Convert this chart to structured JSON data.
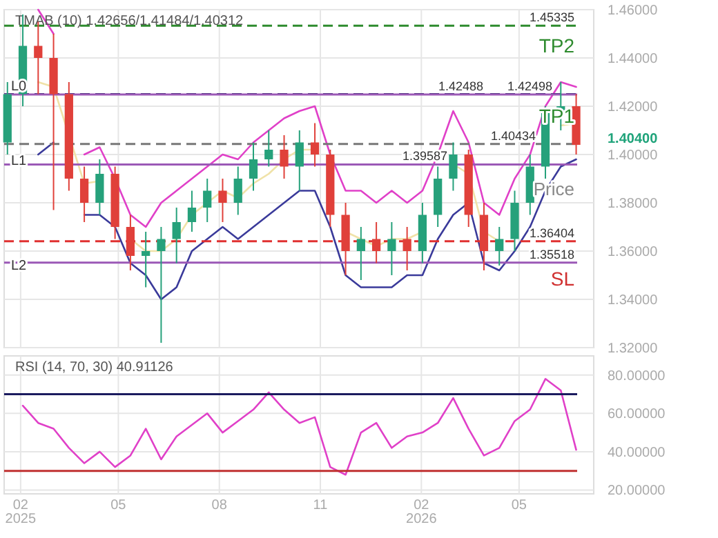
{
  "chart_data": [
    {
      "type": "candlestick",
      "title": "TMAB (10)   1.42656/1.41484/1.40312",
      "x": [
        "2025-01-20",
        "2025-02-03",
        "2025-02-17",
        "2025-03-03",
        "2025-03-17",
        "2025-03-31",
        "2025-04-14",
        "2025-04-28",
        "2025-05-12",
        "2025-05-26",
        "2025-06-09",
        "2025-06-23",
        "2025-07-07",
        "2025-07-21",
        "2025-08-04",
        "2025-08-18",
        "2025-09-01",
        "2025-09-15",
        "2025-09-29",
        "2025-10-13",
        "2025-10-27",
        "2025-11-10",
        "2025-11-24",
        "2025-12-08",
        "2025-12-22",
        "2026-01-05",
        "2026-01-19",
        "2026-02-02",
        "2026-02-16",
        "2026-03-02",
        "2026-03-16",
        "2026-03-30",
        "2026-04-13",
        "2026-04-27",
        "2026-05-11",
        "2026-05-25",
        "2026-06-08",
        "2026-06-22"
      ],
      "ohlc": [
        [
          1.405,
          1.43,
          1.4,
          1.425
        ],
        [
          1.425,
          1.458,
          1.42,
          1.445
        ],
        [
          1.445,
          1.455,
          1.425,
          1.44
        ],
        [
          1.44,
          1.45,
          1.377,
          1.425
        ],
        [
          1.425,
          1.43,
          1.385,
          1.39
        ],
        [
          1.39,
          1.395,
          1.372,
          1.38
        ],
        [
          1.38,
          1.398,
          1.375,
          1.392
        ],
        [
          1.392,
          1.395,
          1.365,
          1.37
        ],
        [
          1.37,
          1.375,
          1.352,
          1.358
        ],
        [
          1.358,
          1.368,
          1.345,
          1.36
        ],
        [
          1.36,
          1.37,
          1.322,
          1.365
        ],
        [
          1.365,
          1.378,
          1.355,
          1.372
        ],
        [
          1.372,
          1.385,
          1.368,
          1.378
        ],
        [
          1.378,
          1.39,
          1.372,
          1.385
        ],
        [
          1.385,
          1.39,
          1.372,
          1.38
        ],
        [
          1.38,
          1.395,
          1.375,
          1.39
        ],
        [
          1.39,
          1.405,
          1.385,
          1.398
        ],
        [
          1.398,
          1.41,
          1.395,
          1.402
        ],
        [
          1.402,
          1.408,
          1.39,
          1.395
        ],
        [
          1.395,
          1.41,
          1.385,
          1.405
        ],
        [
          1.405,
          1.413,
          1.395,
          1.4
        ],
        [
          1.4,
          1.402,
          1.37,
          1.375
        ],
        [
          1.375,
          1.38,
          1.35,
          1.36
        ],
        [
          1.36,
          1.37,
          1.348,
          1.365
        ],
        [
          1.365,
          1.372,
          1.355,
          1.36
        ],
        [
          1.36,
          1.372,
          1.35,
          1.365
        ],
        [
          1.365,
          1.37,
          1.352,
          1.36
        ],
        [
          1.36,
          1.38,
          1.355,
          1.375
        ],
        [
          1.375,
          1.395,
          1.37,
          1.39
        ],
        [
          1.39,
          1.405,
          1.385,
          1.4
        ],
        [
          1.4,
          1.402,
          1.37,
          1.375
        ],
        [
          1.375,
          1.38,
          1.352,
          1.36
        ],
        [
          1.36,
          1.37,
          1.354,
          1.365
        ],
        [
          1.365,
          1.385,
          1.36,
          1.38
        ],
        [
          1.38,
          1.4,
          1.375,
          1.395
        ],
        [
          1.395,
          1.42,
          1.39,
          1.418
        ],
        [
          1.418,
          1.43,
          1.41,
          1.42
        ],
        [
          1.42,
          1.425,
          1.4,
          1.404
        ]
      ],
      "series": [
        {
          "type": "line",
          "color": "#e040c8",
          "values": [
            null,
            null,
            1.46,
            1.45,
            null,
            1.4,
            1.403,
            1.39,
            1.375,
            1.37,
            1.38,
            1.385,
            1.39,
            1.395,
            1.4,
            1.398,
            1.405,
            1.41,
            1.415,
            1.418,
            1.42,
            1.4,
            1.385,
            1.385,
            1.38,
            1.385,
            1.38,
            1.385,
            1.4,
            1.418,
            1.405,
            1.38,
            1.375,
            1.39,
            1.4,
            1.42,
            1.43,
            1.428
          ]
        },
        {
          "type": "line",
          "color": "#f0e2a8",
          "values": [
            null,
            null,
            1.43,
            1.428,
            1.408,
            1.388,
            1.389,
            null,
            1.365,
            1.36,
            1.36,
            1.365,
            1.375,
            1.38,
            1.385,
            1.382,
            1.388,
            1.392,
            1.398,
            1.402,
            1.402,
            null,
            1.368,
            1.365,
            1.362,
            1.365,
            1.365,
            1.368,
            null,
            1.396,
            1.392,
            1.368,
            1.364,
            null,
            null,
            null,
            1.412,
            1.413
          ]
        },
        {
          "type": "line",
          "color": "#3a3a9a",
          "values": [
            null,
            null,
            1.4,
            1.405,
            null,
            1.375,
            1.375,
            1.37,
            1.355,
            1.35,
            1.34,
            1.345,
            1.36,
            1.365,
            1.37,
            1.365,
            1.37,
            1.375,
            1.38,
            1.385,
            1.385,
            1.37,
            1.35,
            1.345,
            1.345,
            1.345,
            1.35,
            1.35,
            1.365,
            1.375,
            1.38,
            1.355,
            1.352,
            1.36,
            1.37,
            1.385,
            1.395,
            1.398
          ]
        }
      ],
      "xlim": [
        "2025-01-17",
        "2026-07-08"
      ],
      "xticks": [
        "2025-02-01",
        "2025-05-01",
        "2025-08-01",
        "2025-11-01",
        "2026-02-01",
        "2026-05-01"
      ],
      "ylim": [
        1.32,
        1.46
      ],
      "yticks": [
        {
          "value": 1.32,
          "label": "1.32000"
        },
        {
          "value": 1.34,
          "label": "1.34000"
        },
        {
          "value": 1.36,
          "label": "1.36000"
        },
        {
          "value": 1.38,
          "label": "1.38000"
        },
        {
          "value": 1.4,
          "label": "1.40000"
        },
        {
          "value": 1.42,
          "label": "1.42000"
        },
        {
          "value": 1.44,
          "label": "1.44000"
        },
        {
          "value": 1.46,
          "label": "1.46000"
        }
      ],
      "grid": true,
      "tick_labels": "y",
      "ref_lines": [
        {
          "axis": "y",
          "value": 1.45335,
          "label": "1.45335",
          "color": "#2e8b2e",
          "line_style": "dashed"
        },
        {
          "axis": "y",
          "value": 1.42498,
          "label": "1.42498",
          "color": "#1a1a5e",
          "line_style": "dashed"
        },
        {
          "axis": "y",
          "value": 1.42488,
          "label": "1.42488",
          "color": "#9b59b6",
          "line_style": "solid"
        },
        {
          "axis": "y",
          "value": 1.40434,
          "label": "1.40434",
          "color": "#777777",
          "line_style": "dashed"
        },
        {
          "axis": "y",
          "value": 1.39587,
          "label": "1.39587",
          "color": "#9b59b6",
          "line_style": "solid"
        },
        {
          "axis": "y",
          "value": 1.36404,
          "label": "1.36404",
          "color": "#e03030",
          "line_style": "dashed"
        },
        {
          "axis": "y",
          "value": 1.35518,
          "label": "1.35518",
          "color": "#9b59b6",
          "line_style": "solid"
        }
      ],
      "annotations": [
        "L0",
        "L1",
        "L2",
        "TP2",
        "TP1",
        "Price",
        "SL",
        "1.40400"
      ]
    },
    {
      "type": "line",
      "title": "RSI (14, 70, 30)   40.91126",
      "x": [
        "2025-02-03",
        "2025-02-17",
        "2025-03-03",
        "2025-03-17",
        "2025-03-31",
        "2025-04-14",
        "2025-04-28",
        "2025-05-12",
        "2025-05-26",
        "2025-06-09",
        "2025-06-23",
        "2025-07-07",
        "2025-07-21",
        "2025-08-04",
        "2025-08-18",
        "2025-09-01",
        "2025-09-15",
        "2025-09-29",
        "2025-10-13",
        "2025-10-27",
        "2025-11-10",
        "2025-11-24",
        "2025-12-08",
        "2025-12-22",
        "2026-01-05",
        "2026-01-19",
        "2026-02-02",
        "2026-02-16",
        "2026-03-02",
        "2026-03-16",
        "2026-03-30",
        "2026-04-13",
        "2026-04-27",
        "2026-05-11",
        "2026-05-25",
        "2026-06-08",
        "2026-06-22"
      ],
      "series": [
        {
          "color": "#e040c8",
          "values": [
            64,
            55,
            52,
            42,
            34,
            40,
            32,
            38,
            52,
            36,
            48,
            54,
            60,
            50,
            56,
            62,
            71,
            62,
            55,
            58,
            32,
            28,
            50,
            55,
            42,
            48,
            50,
            55,
            68,
            52,
            38,
            42,
            56,
            62,
            78,
            72,
            41
          ]
        }
      ],
      "xlim": [
        "2025-01-17",
        "2026-07-08"
      ],
      "xticks": [
        {
          "value": "2025-02-01",
          "label": "02\n2025"
        },
        {
          "value": "2025-05-01",
          "label": "05"
        },
        {
          "value": "2025-08-01",
          "label": "08"
        },
        {
          "value": "2025-11-01",
          "label": "11"
        },
        {
          "value": "2026-02-01",
          "label": "02\n2026"
        },
        {
          "value": "2026-05-01",
          "label": "05"
        }
      ],
      "ylim": [
        18,
        90
      ],
      "yticks": [
        {
          "value": 20,
          "label": "20.00000"
        },
        {
          "value": 40,
          "label": "40.00000"
        },
        {
          "value": 60,
          "label": "60.00000"
        },
        {
          "value": 80,
          "label": "80.00000"
        }
      ],
      "grid": true,
      "ref_lines": [
        {
          "axis": "y",
          "value": 70,
          "label": null,
          "color": "#1a1a5e",
          "line_style": "solid"
        },
        {
          "axis": "y",
          "value": 30,
          "label": null,
          "color": "#c03030",
          "line_style": "solid"
        }
      ]
    }
  ]
}
